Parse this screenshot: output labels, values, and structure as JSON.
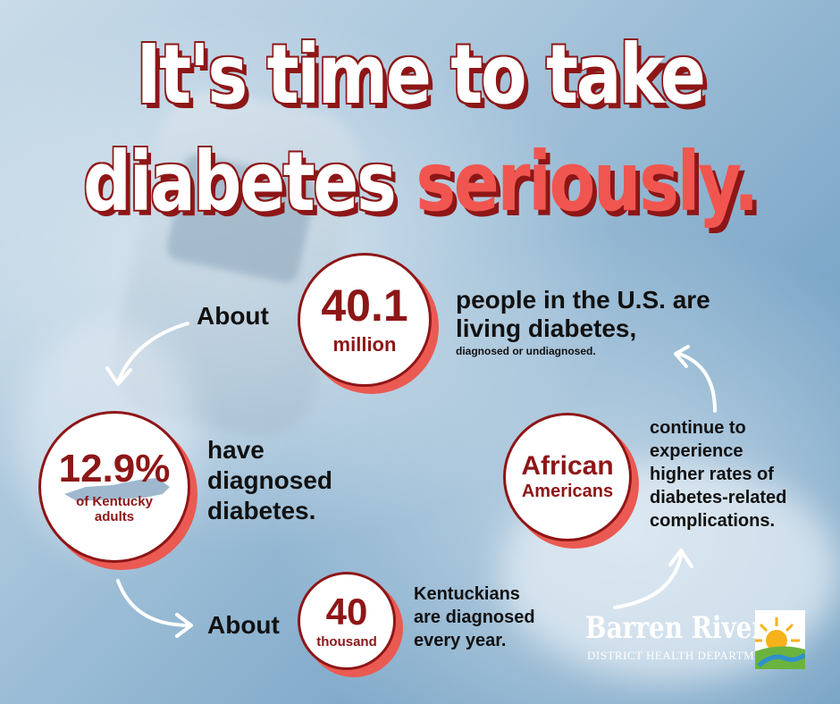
{
  "headline": {
    "line1": "It's time to take",
    "line2_plain": "diabetes",
    "line2_emphasis": "seriously."
  },
  "stats": {
    "us": {
      "prefix": "About",
      "number": "40.1",
      "unit": "million",
      "text_line1": "people in the U.S. are",
      "text_line2": "living diabetes,",
      "note": "diagnosed or undiagnosed."
    },
    "kentucky": {
      "number": "12.9%",
      "unit_line1": "of Kentucky",
      "unit_line2": "adults",
      "text_line1": "have",
      "text_line2": "diagnosed",
      "text_line3": "diabetes."
    },
    "yearly": {
      "prefix": "About",
      "number": "40",
      "unit": "thousand",
      "text_line1": "Kentuckians",
      "text_line2": "are diagnosed",
      "text_line3": "every year."
    },
    "african": {
      "line1": "African",
      "line2": "Americans",
      "text_line1": "continue to",
      "text_line2": "experience",
      "text_line3": "higher rates of",
      "text_line4": "diabetes-related",
      "text_line5": "complications."
    }
  },
  "logo": {
    "name": "Barren River",
    "subtitle": "DISTRICT HEALTH DEPARTMENT"
  },
  "colors": {
    "dark_red": "#8e1617",
    "accent_red": "#f0564f",
    "circle_shadow": "#ea5a52"
  }
}
